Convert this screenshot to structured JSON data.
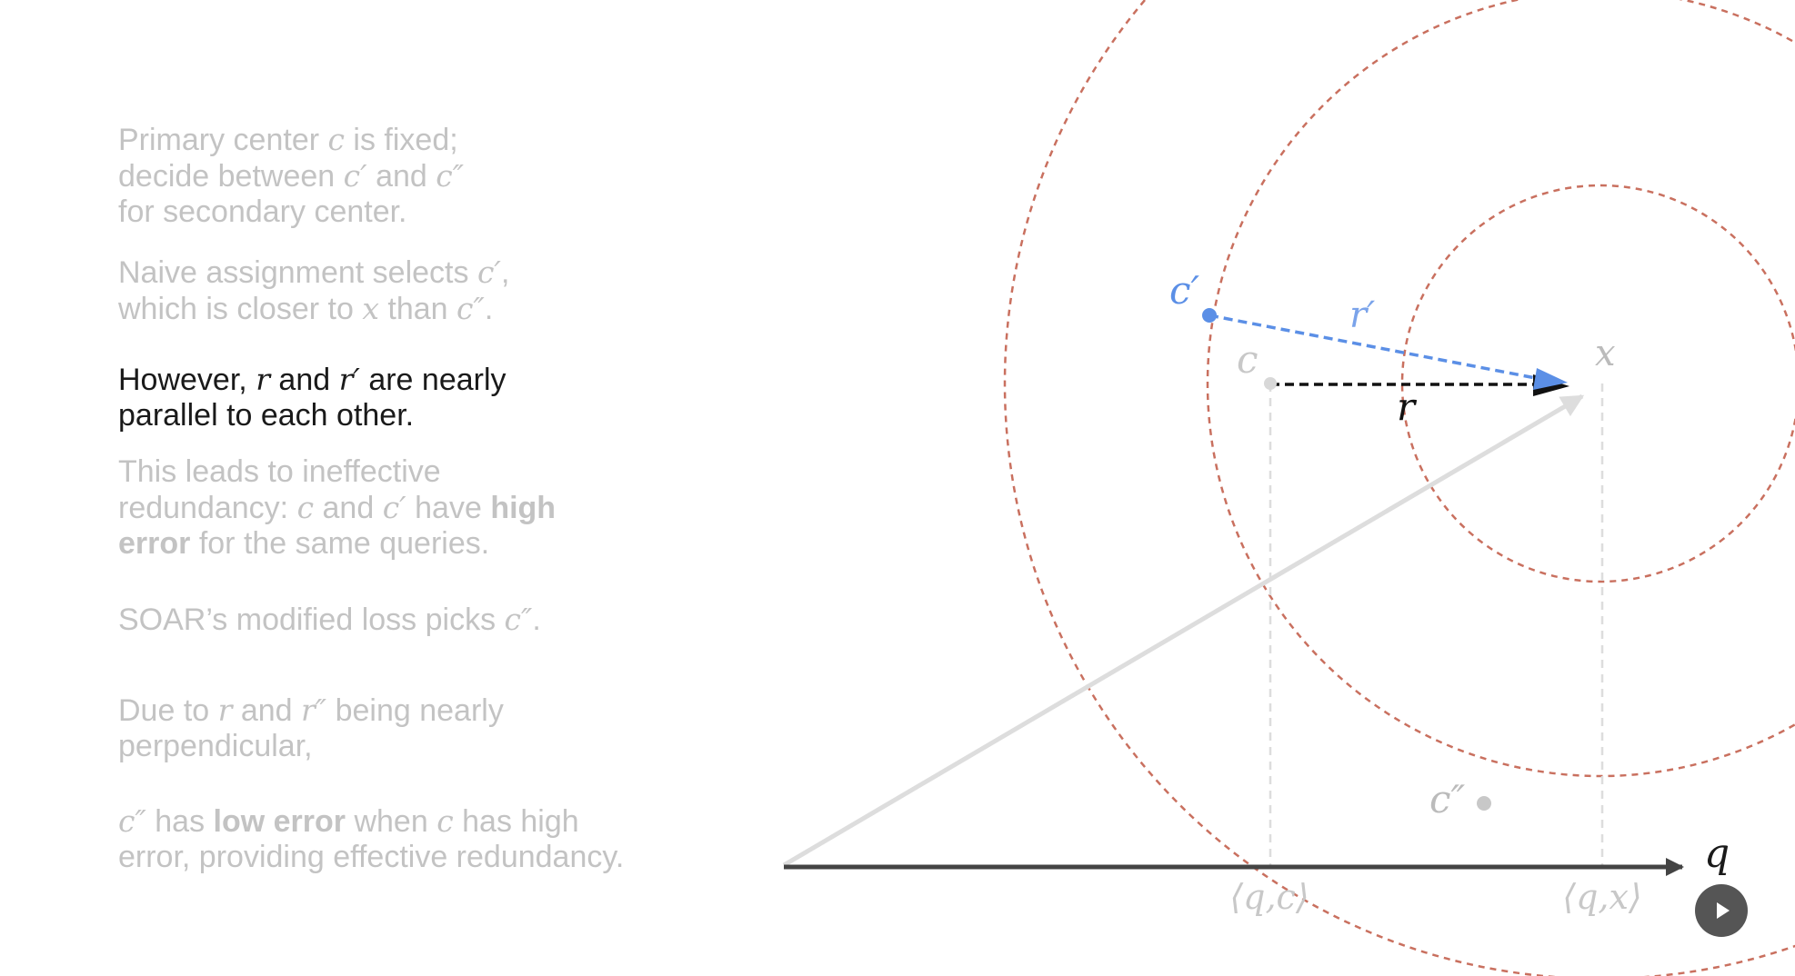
{
  "text_panel": {
    "p1": {
      "l1": [
        "Primary center ",
        "c",
        " is fixed;"
      ],
      "l2": [
        "decide between ",
        "c′",
        " and ",
        "c″"
      ],
      "l3": "for secondary center."
    },
    "p2": {
      "l1": [
        "Naive assignment selects ",
        "c′",
        ","
      ],
      "l2": [
        "which is closer to ",
        "x",
        " than ",
        "c″",
        "."
      ]
    },
    "p3": {
      "l1": [
        "However, ",
        "r",
        " and ",
        "r′",
        " are nearly"
      ],
      "l2": "parallel to each other."
    },
    "p4": {
      "l1": "This leads to ineffective",
      "l2": [
        "redundancy: ",
        "c",
        " and ",
        "c′",
        " have ",
        "high"
      ],
      "l3": [
        "error",
        " for the same queries."
      ]
    },
    "p5": {
      "l1": [
        "SOAR’s modified loss picks ",
        "c″",
        "."
      ]
    },
    "p6": {
      "l1": [
        "Due to ",
        "r",
        " and ",
        "r″",
        " being nearly"
      ],
      "l2": "perpendicular,"
    },
    "p7": {
      "l1": [
        "c″",
        " has ",
        "low error",
        " when ",
        "c",
        " has high"
      ],
      "l2": "error, providing effective redundancy."
    }
  },
  "diagram": {
    "labels": {
      "c_prime": "c′",
      "r_prime": "r′",
      "c": "c",
      "x": "x",
      "r": "r",
      "c_double_prime": "c″",
      "q": "q",
      "qc": "⟨q,c⟩",
      "qx": "⟨q,x⟩"
    }
  },
  "colors": {
    "text_muted": "#c3c3c3",
    "text_active": "#1a1a1a",
    "circle": "#c9705f",
    "blue": "#5b8fe6",
    "axis": "#444444",
    "light_gray": "#dddddd",
    "point_gray": "#c8c8c8"
  },
  "controls": {
    "play_icon": "play-icon"
  }
}
